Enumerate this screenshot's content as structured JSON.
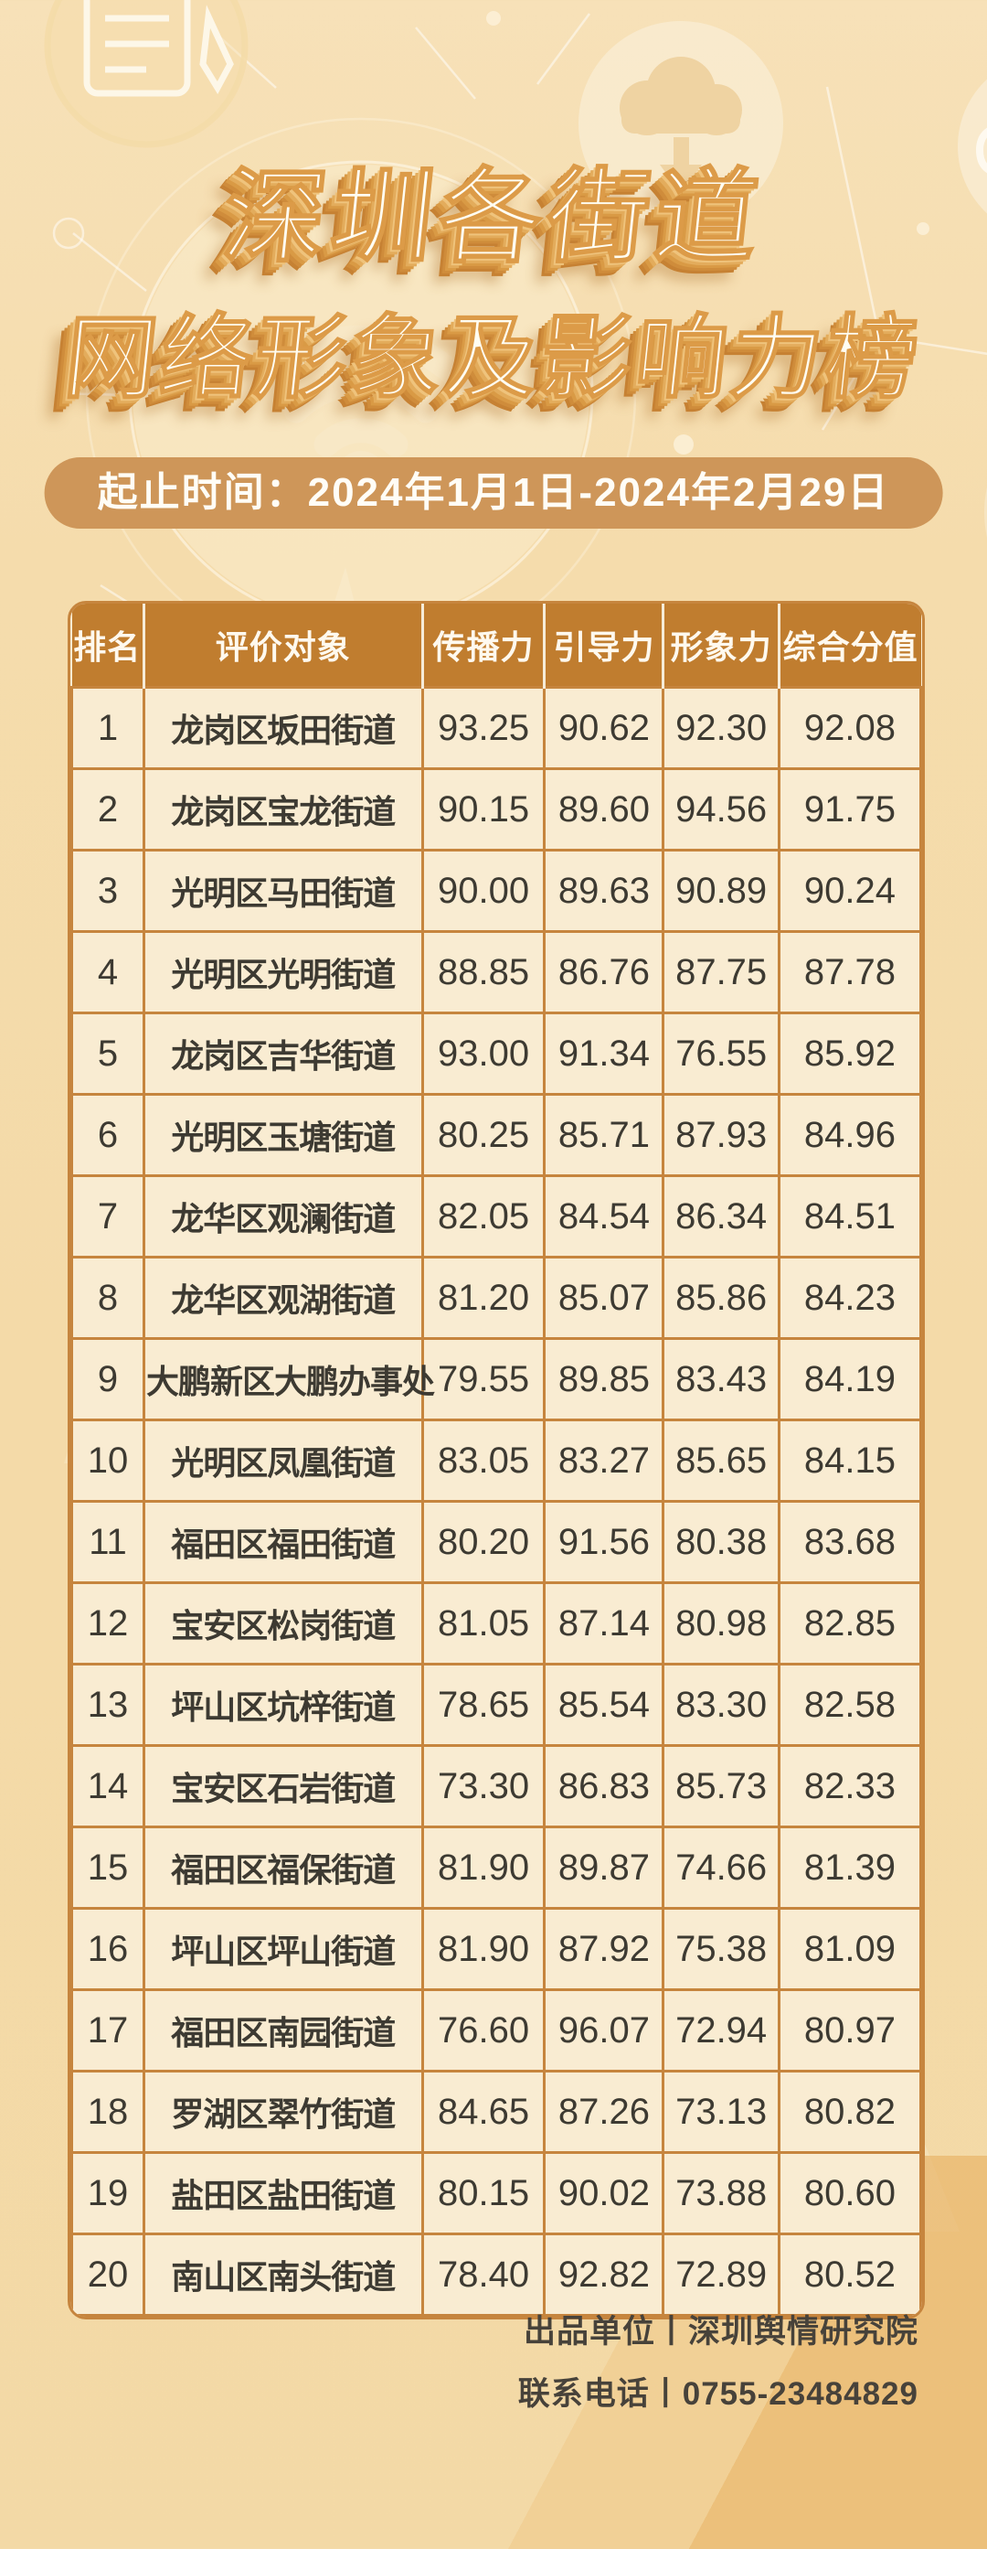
{
  "page": {
    "title_line1": "深圳各街道",
    "title_line2": "网络形象及影响力榜",
    "banner_text": "起止时间：2024年1月1日-2024年2月29日",
    "footer_line1": "出品单位丨深圳舆情研究院",
    "footer_line2": "联系电话丨0755-23484829"
  },
  "table": {
    "headers": [
      "排名",
      "评价对象",
      "传播力",
      "引导力",
      "形象力",
      "综合分值"
    ],
    "rows": [
      [
        "1",
        "龙岗区坂田街道",
        "93.25",
        "90.62",
        "92.30",
        "92.08"
      ],
      [
        "2",
        "龙岗区宝龙街道",
        "90.15",
        "89.60",
        "94.56",
        "91.75"
      ],
      [
        "3",
        "光明区马田街道",
        "90.00",
        "89.63",
        "90.89",
        "90.24"
      ],
      [
        "4",
        "光明区光明街道",
        "88.85",
        "86.76",
        "87.75",
        "87.78"
      ],
      [
        "5",
        "龙岗区吉华街道",
        "93.00",
        "91.34",
        "76.55",
        "85.92"
      ],
      [
        "6",
        "光明区玉塘街道",
        "80.25",
        "85.71",
        "87.93",
        "84.96"
      ],
      [
        "7",
        "龙华区观澜街道",
        "82.05",
        "84.54",
        "86.34",
        "84.51"
      ],
      [
        "8",
        "龙华区观湖街道",
        "81.20",
        "85.07",
        "85.86",
        "84.23"
      ],
      [
        "9",
        "大鹏新区大鹏办事处",
        "79.55",
        "89.85",
        "83.43",
        "84.19"
      ],
      [
        "10",
        "光明区凤凰街道",
        "83.05",
        "83.27",
        "85.65",
        "84.15"
      ],
      [
        "11",
        "福田区福田街道",
        "80.20",
        "91.56",
        "80.38",
        "83.68"
      ],
      [
        "12",
        "宝安区松岗街道",
        "81.05",
        "87.14",
        "80.98",
        "82.85"
      ],
      [
        "13",
        "坪山区坑梓街道",
        "78.65",
        "85.54",
        "83.30",
        "82.58"
      ],
      [
        "14",
        "宝安区石岩街道",
        "73.30",
        "86.83",
        "85.73",
        "82.33"
      ],
      [
        "15",
        "福田区福保街道",
        "81.90",
        "89.87",
        "74.66",
        "81.39"
      ],
      [
        "16",
        "坪山区坪山街道",
        "81.90",
        "87.92",
        "75.38",
        "81.09"
      ],
      [
        "17",
        "福田区南园街道",
        "76.60",
        "96.07",
        "72.94",
        "80.97"
      ],
      [
        "18",
        "罗湖区翠竹街道",
        "84.65",
        "87.26",
        "73.13",
        "80.82"
      ],
      [
        "19",
        "盐田区盐田街道",
        "80.15",
        "90.02",
        "73.88",
        "80.60"
      ],
      [
        "20",
        "南山区南头街道",
        "78.40",
        "92.82",
        "72.89",
        "80.52"
      ]
    ]
  },
  "colors": {
    "page_background": "#F5DBAA",
    "banner_background": "#CE9659",
    "table_header_background": "#C07D2F",
    "table_cell_background": "#F9ECD2",
    "table_border": "#C6853E",
    "body_text": "#3D3A32",
    "title_fill": "#FFFDF2",
    "title_outline": "#DC9B48",
    "title_extrude": "#C68133"
  },
  "decorations": {
    "icons": [
      "wifi-icon",
      "cloud-download-icon",
      "cloud-icon",
      "server-cloud-icon",
      "phone-icon",
      "document-pencil-icon",
      "network-nodes"
    ]
  }
}
